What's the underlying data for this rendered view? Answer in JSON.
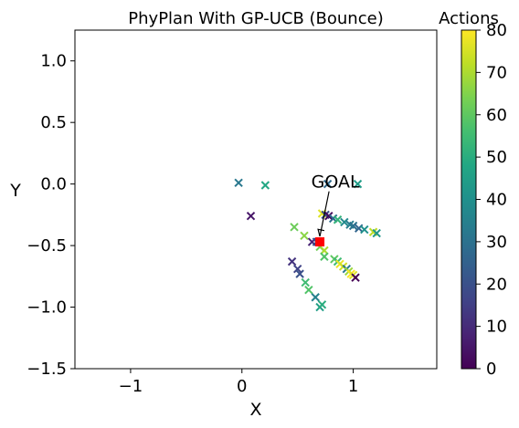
{
  "chart_data": {
    "type": "scatter",
    "title": "PhyPlan With GP-UCB (Bounce)",
    "xlabel": "X",
    "ylabel": "Y",
    "xlim": [
      -1.5,
      1.75
    ],
    "ylim": [
      -1.5,
      1.25
    ],
    "xticks": [
      -1,
      0,
      1
    ],
    "xtick_labels": [
      "−1",
      "0",
      "1"
    ],
    "yticks": [
      1.0,
      0.5,
      0.0,
      -0.5,
      -1.0,
      -1.5
    ],
    "ytick_labels": [
      "1.0",
      "0.5",
      "0.0",
      "−0.5",
      "−1.0",
      "−1.5"
    ],
    "grid": false,
    "marker": "x",
    "colorbar": {
      "title": "Actions",
      "colormap": "viridis",
      "range": [
        0,
        80
      ],
      "ticks": [
        0,
        10,
        20,
        30,
        40,
        50,
        60,
        70,
        80
      ],
      "tick_labels": [
        "0",
        "10",
        "20",
        "30",
        "40",
        "50",
        "60",
        "70",
        "80"
      ]
    },
    "goal": {
      "label": "GOAL",
      "x": 0.7,
      "y": -0.47,
      "color": "#ff0000",
      "text_x": 0.84,
      "text_y": -0.03
    },
    "points": [
      {
        "x": 0.08,
        "y": -0.26,
        "c": 5
      },
      {
        "x": 0.45,
        "y": -0.63,
        "c": 12
      },
      {
        "x": 0.5,
        "y": -0.69,
        "c": 16
      },
      {
        "x": 0.52,
        "y": -0.73,
        "c": 20
      },
      {
        "x": 0.57,
        "y": -0.8,
        "c": 55
      },
      {
        "x": 0.6,
        "y": -0.86,
        "c": 58
      },
      {
        "x": 0.66,
        "y": -0.92,
        "c": 35
      },
      {
        "x": 0.7,
        "y": -1.0,
        "c": 45
      },
      {
        "x": 0.72,
        "y": -0.98,
        "c": 50
      },
      {
        "x": -0.03,
        "y": 0.01,
        "c": 32
      },
      {
        "x": 0.21,
        "y": -0.01,
        "c": 48
      },
      {
        "x": 0.77,
        "y": 0.0,
        "c": 28
      },
      {
        "x": 1.04,
        "y": 0.0,
        "c": 44
      },
      {
        "x": 0.47,
        "y": -0.35,
        "c": 62
      },
      {
        "x": 0.56,
        "y": -0.42,
        "c": 66
      },
      {
        "x": 0.63,
        "y": -0.47,
        "c": 8
      },
      {
        "x": 0.67,
        "y": -0.47,
        "c": 18
      },
      {
        "x": 0.7,
        "y": -0.51,
        "c": 63
      },
      {
        "x": 0.74,
        "y": -0.54,
        "c": 70
      },
      {
        "x": 0.74,
        "y": -0.59,
        "c": 58
      },
      {
        "x": 0.72,
        "y": -0.24,
        "c": 76
      },
      {
        "x": 0.75,
        "y": -0.25,
        "c": 20
      },
      {
        "x": 0.78,
        "y": -0.26,
        "c": 2
      },
      {
        "x": 0.82,
        "y": -0.28,
        "c": 28
      },
      {
        "x": 0.86,
        "y": -0.29,
        "c": 52
      },
      {
        "x": 0.92,
        "y": -0.31,
        "c": 38
      },
      {
        "x": 0.97,
        "y": -0.33,
        "c": 34
      },
      {
        "x": 1.0,
        "y": -0.34,
        "c": 30
      },
      {
        "x": 1.05,
        "y": -0.36,
        "c": 26
      },
      {
        "x": 1.1,
        "y": -0.37,
        "c": 40
      },
      {
        "x": 1.18,
        "y": -0.39,
        "c": 72
      },
      {
        "x": 1.21,
        "y": -0.4,
        "c": 42
      },
      {
        "x": 0.83,
        "y": -0.61,
        "c": 60
      },
      {
        "x": 0.86,
        "y": -0.63,
        "c": 55
      },
      {
        "x": 0.88,
        "y": -0.65,
        "c": 78
      },
      {
        "x": 0.91,
        "y": -0.67,
        "c": 74
      },
      {
        "x": 0.94,
        "y": -0.69,
        "c": 32
      },
      {
        "x": 0.96,
        "y": -0.71,
        "c": 68
      },
      {
        "x": 0.98,
        "y": -0.73,
        "c": 80
      },
      {
        "x": 1.0,
        "y": -0.74,
        "c": 76
      },
      {
        "x": 1.02,
        "y": -0.76,
        "c": 0
      }
    ]
  }
}
